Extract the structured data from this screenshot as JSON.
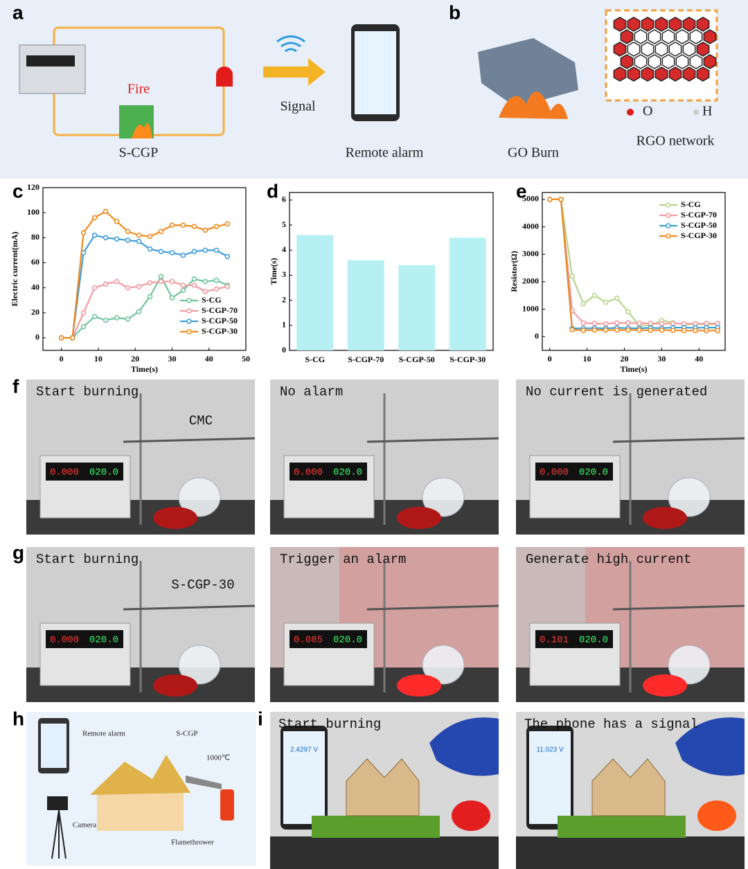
{
  "labels": [
    "a",
    "b",
    "c",
    "d",
    "e",
    "f",
    "g",
    "h",
    "i"
  ],
  "a": {
    "fire": "Fire",
    "device": "S-CGP",
    "signal": "Signal",
    "alarm": "Remote alarm"
  },
  "b": {
    "caption": "GO Burn",
    "oxygen": "O",
    "hydrogen": "H",
    "network": "RGO network"
  },
  "f": {
    "captions": [
      "Start burning",
      "No alarm",
      "No current is generated"
    ],
    "sample": "CMC",
    "displays": [
      [
        "0.000",
        "020.0"
      ],
      [
        "0.000",
        "020.0"
      ],
      [
        "0.000",
        "020.0"
      ]
    ]
  },
  "g": {
    "captions": [
      "Start burning",
      "Trigger an alarm",
      "Generate high current"
    ],
    "sample": "S-CGP-30",
    "displays": [
      [
        "0.000",
        "020.0"
      ],
      [
        "0.085",
        "020.0"
      ],
      [
        "0.101",
        "020.0"
      ]
    ]
  },
  "h": {
    "alarm": "Remote alarm",
    "device": "S-CGP",
    "temperature": "1000℃",
    "camera": "Camera",
    "flamethrower": "Flamethrower"
  },
  "i": {
    "captions": [
      "Start burning",
      "The phone has a signal"
    ],
    "phones": [
      "2.4297 V",
      "11.023 V"
    ]
  },
  "chart_data": [
    {
      "type": "line",
      "x_label": "Time(s)",
      "y_label": "Electric current(mA)",
      "x": [
        0,
        3,
        6,
        9,
        12,
        15,
        18,
        21,
        24,
        27,
        30,
        33,
        36,
        39,
        42,
        45
      ],
      "series": [
        {
          "name": "S-CG",
          "color": "#6fc49a",
          "values": [
            0,
            0,
            9,
            17,
            14,
            16,
            15,
            21,
            33,
            49,
            32,
            38,
            47,
            45,
            46,
            42
          ]
        },
        {
          "name": "S-CGP-70",
          "color": "#f29a9e",
          "values": [
            0,
            0,
            20,
            40,
            43,
            45,
            40,
            41,
            44,
            45,
            45,
            42,
            42,
            37,
            39,
            41
          ]
        },
        {
          "name": "S-CGP-50",
          "color": "#3f9ddc",
          "values": [
            0,
            0,
            68,
            82,
            80,
            79,
            78,
            77,
            71,
            69,
            68,
            66,
            69,
            70,
            70,
            65
          ]
        },
        {
          "name": "S-CGP-30",
          "color": "#f08a1c",
          "values": [
            0,
            0,
            84,
            96,
            101,
            93,
            85,
            82,
            81,
            85,
            90,
            90,
            89,
            86,
            89,
            91
          ]
        }
      ],
      "xlim": [
        -5,
        50
      ],
      "ylim": [
        -10,
        120
      ],
      "xticks": [
        0,
        10,
        20,
        30,
        40,
        50
      ],
      "yticks": [
        0,
        20,
        40,
        60,
        80,
        100,
        120
      ],
      "legend": "lower right"
    },
    {
      "type": "bar",
      "y_label": "Time(s)",
      "categories": [
        "S-CG",
        "S-CGP-70",
        "S-CGP-50",
        "S-CGP-30"
      ],
      "values": [
        4.6,
        3.6,
        3.4,
        4.5
      ],
      "color": "#b6f0f3",
      "ylim": [
        0,
        6.3
      ],
      "yticks": [
        0,
        1,
        2,
        3,
        4,
        5,
        6
      ]
    },
    {
      "type": "line",
      "x_label": "Time(s)",
      "y_label": "Resistor(Ω)",
      "x": [
        0,
        3,
        6,
        9,
        12,
        15,
        18,
        21,
        24,
        27,
        30,
        33,
        36,
        39,
        42,
        45
      ],
      "series": [
        {
          "name": "S-CG",
          "color": "#b5d68a",
          "values": [
            5000,
            5000,
            2200,
            1200,
            1500,
            1250,
            1400,
            900,
            400,
            400,
            600,
            500,
            450,
            450,
            450,
            450
          ]
        },
        {
          "name": "S-CGP-70",
          "color": "#f29a9e",
          "values": [
            5000,
            5000,
            950,
            500,
            480,
            470,
            500,
            500,
            490,
            480,
            470,
            480,
            470,
            470,
            480,
            480
          ]
        },
        {
          "name": "S-CGP-50",
          "color": "#3f9ddc",
          "values": [
            5000,
            5000,
            300,
            300,
            310,
            300,
            320,
            310,
            300,
            320,
            310,
            330,
            330,
            320,
            330,
            330
          ]
        },
        {
          "name": "S-CGP-30",
          "color": "#f08a1c",
          "values": [
            5000,
            5000,
            250,
            230,
            240,
            240,
            240,
            240,
            240,
            230,
            240,
            230,
            220,
            220,
            220,
            220
          ]
        }
      ],
      "xlim": [
        -2,
        47
      ],
      "ylim": [
        -500,
        5250
      ],
      "xticks": [
        0,
        10,
        20,
        30,
        40
      ],
      "yticks": [
        0,
        1000,
        2000,
        3000,
        4000,
        5000
      ],
      "legend": "upper right"
    }
  ]
}
